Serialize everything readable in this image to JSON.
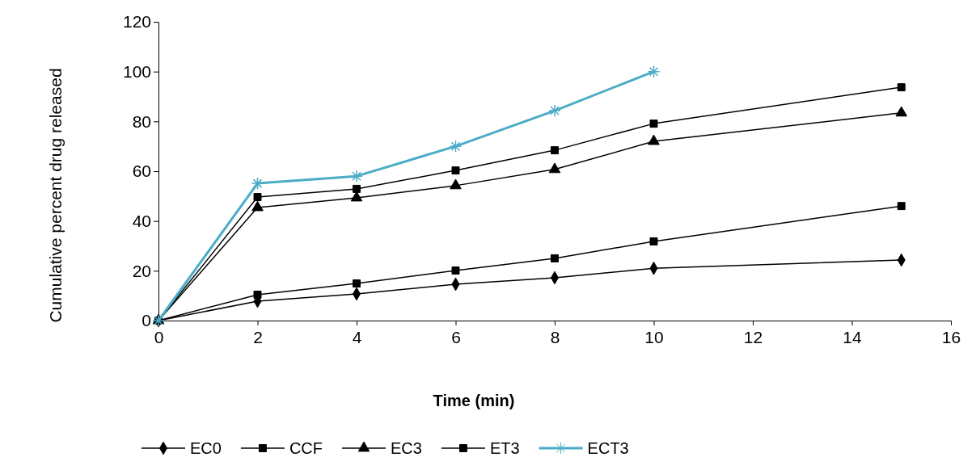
{
  "chart_data": {
    "type": "line",
    "xlabel": "Time (min)",
    "ylabel": "Cumulative percent drug released",
    "x": [
      0,
      2,
      4,
      6,
      8,
      10,
      15
    ],
    "xlim": [
      0,
      16
    ],
    "xticks": [
      0,
      2,
      4,
      6,
      8,
      10,
      12,
      14,
      16
    ],
    "ylim": [
      0,
      120
    ],
    "yticks": [
      0,
      20,
      40,
      60,
      80,
      100,
      120
    ],
    "grid": false,
    "legend": "bottom",
    "line_style": "solid",
    "series": [
      {
        "name": "EC0",
        "color": "#000000",
        "marker": "diamond",
        "values": [
          0,
          7.8,
          10.7,
          14.6,
          17.2,
          21,
          24.3
        ]
      },
      {
        "name": "CCF",
        "color": "#000000",
        "marker": "square",
        "values": [
          0,
          10.4,
          14.9,
          20.1,
          25,
          31.8,
          46
        ]
      },
      {
        "name": "EC3",
        "color": "#000000",
        "marker": "triangle",
        "values": [
          0,
          45.4,
          49.3,
          54.2,
          60.7,
          72,
          83.4
        ]
      },
      {
        "name": "ET3",
        "color": "#000000",
        "marker": "square",
        "values": [
          0,
          49.6,
          52.9,
          60.3,
          68.4,
          79.1,
          93.7
        ]
      },
      {
        "name": "ECT3",
        "color": "#4bacc6",
        "marker": "cross",
        "x": [
          0,
          2,
          4,
          6,
          8,
          10
        ],
        "values": [
          0,
          55.1,
          58,
          70,
          84.3,
          100
        ]
      }
    ]
  }
}
